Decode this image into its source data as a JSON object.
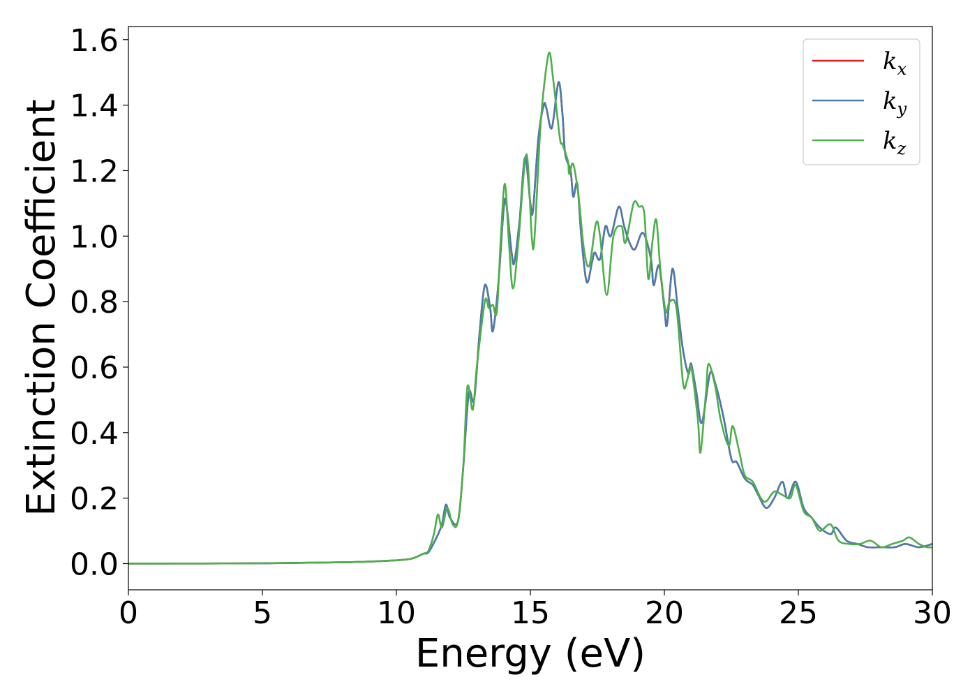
{
  "chart_data": {
    "type": "line",
    "xlabel": "Energy (eV)",
    "ylabel": "Extinction Coefficient",
    "xlim": [
      0,
      30
    ],
    "ylim": [
      -0.08,
      1.64
    ],
    "xticks": [
      0,
      5,
      10,
      15,
      20,
      25,
      30
    ],
    "xtick_labels": [
      "0",
      "5",
      "10",
      "15",
      "20",
      "25",
      "30"
    ],
    "yticks": [
      0.0,
      0.2,
      0.4,
      0.6,
      0.8,
      1.0,
      1.2,
      1.4,
      1.6
    ],
    "ytick_labels": [
      "0.0",
      "0.2",
      "0.4",
      "0.6",
      "0.8",
      "1.0",
      "1.2",
      "1.4",
      "1.6"
    ],
    "grid": false,
    "legend_position": "top-right",
    "series": [
      {
        "name": "kx",
        "legend_base": "k",
        "legend_sub": "x",
        "color": "#e41a1c",
        "points": [
          [
            0,
            0
          ],
          [
            5,
            0.001
          ],
          [
            8,
            0.004
          ],
          [
            9.5,
            0.008
          ],
          [
            10.5,
            0.014
          ],
          [
            11,
            0.03
          ],
          [
            11.2,
            0.035
          ],
          [
            11.5,
            0.08
          ],
          [
            11.7,
            0.12
          ],
          [
            11.85,
            0.18
          ],
          [
            12,
            0.14
          ],
          [
            12.3,
            0.13
          ],
          [
            12.5,
            0.3
          ],
          [
            12.7,
            0.52
          ],
          [
            12.9,
            0.5
          ],
          [
            13.1,
            0.7
          ],
          [
            13.3,
            0.85
          ],
          [
            13.5,
            0.78
          ],
          [
            13.6,
            0.71
          ],
          [
            13.8,
            0.85
          ],
          [
            14,
            1.08
          ],
          [
            14.1,
            1.1
          ],
          [
            14.3,
            0.95
          ],
          [
            14.4,
            0.92
          ],
          [
            14.6,
            1.05
          ],
          [
            14.8,
            1.24
          ],
          [
            15,
            1.1
          ],
          [
            15.1,
            1.08
          ],
          [
            15.3,
            1.3
          ],
          [
            15.5,
            1.4
          ],
          [
            15.6,
            1.39
          ],
          [
            15.8,
            1.33
          ],
          [
            16.05,
            1.47
          ],
          [
            16.2,
            1.37
          ],
          [
            16.3,
            1.25
          ],
          [
            16.5,
            1.2
          ],
          [
            16.6,
            1.12
          ],
          [
            16.75,
            1.16
          ],
          [
            16.9,
            1.0
          ],
          [
            17.1,
            0.86
          ],
          [
            17.3,
            0.92
          ],
          [
            17.4,
            0.95
          ],
          [
            17.6,
            0.93
          ],
          [
            17.8,
            1.03
          ],
          [
            18,
            1.0
          ],
          [
            18.3,
            1.09
          ],
          [
            18.5,
            1.03
          ],
          [
            18.7,
            0.98
          ],
          [
            18.9,
            0.96
          ],
          [
            19.2,
            1.01
          ],
          [
            19.5,
            0.93
          ],
          [
            19.6,
            0.85
          ],
          [
            19.8,
            0.91
          ],
          [
            20,
            0.78
          ],
          [
            20.1,
            0.73
          ],
          [
            20.3,
            0.9
          ],
          [
            20.5,
            0.78
          ],
          [
            20.7,
            0.65
          ],
          [
            20.9,
            0.58
          ],
          [
            21,
            0.61
          ],
          [
            21.2,
            0.52
          ],
          [
            21.4,
            0.43
          ],
          [
            21.7,
            0.58
          ],
          [
            21.9,
            0.55
          ],
          [
            22.2,
            0.45
          ],
          [
            22.5,
            0.32
          ],
          [
            22.7,
            0.31
          ],
          [
            23,
            0.26
          ],
          [
            23.3,
            0.24
          ],
          [
            23.5,
            0.21
          ],
          [
            23.8,
            0.17
          ],
          [
            24.1,
            0.2
          ],
          [
            24.4,
            0.25
          ],
          [
            24.6,
            0.2
          ],
          [
            24.9,
            0.25
          ],
          [
            25.2,
            0.17
          ],
          [
            25.5,
            0.14
          ],
          [
            25.8,
            0.11
          ],
          [
            26.2,
            0.09
          ],
          [
            26.4,
            0.11
          ],
          [
            26.8,
            0.07
          ],
          [
            27.2,
            0.06
          ],
          [
            27.6,
            0.05
          ],
          [
            28.1,
            0.05
          ],
          [
            28.6,
            0.05
          ],
          [
            29,
            0.06
          ],
          [
            29.5,
            0.05
          ],
          [
            30,
            0.06
          ]
        ]
      },
      {
        "name": "ky",
        "legend_base": "k",
        "legend_sub": "y",
        "color": "#4a7bb0",
        "points": [
          [
            0,
            0
          ],
          [
            5,
            0.001
          ],
          [
            8,
            0.004
          ],
          [
            9.5,
            0.008
          ],
          [
            10.5,
            0.014
          ],
          [
            11,
            0.03
          ],
          [
            11.2,
            0.035
          ],
          [
            11.5,
            0.08
          ],
          [
            11.7,
            0.12
          ],
          [
            11.85,
            0.18
          ],
          [
            12,
            0.14
          ],
          [
            12.3,
            0.13
          ],
          [
            12.5,
            0.3
          ],
          [
            12.7,
            0.52
          ],
          [
            12.9,
            0.5
          ],
          [
            13.1,
            0.7
          ],
          [
            13.3,
            0.85
          ],
          [
            13.5,
            0.78
          ],
          [
            13.6,
            0.71
          ],
          [
            13.8,
            0.85
          ],
          [
            14,
            1.08
          ],
          [
            14.1,
            1.1
          ],
          [
            14.3,
            0.95
          ],
          [
            14.4,
            0.92
          ],
          [
            14.6,
            1.05
          ],
          [
            14.8,
            1.24
          ],
          [
            15,
            1.1
          ],
          [
            15.1,
            1.08
          ],
          [
            15.3,
            1.3
          ],
          [
            15.5,
            1.4
          ],
          [
            15.6,
            1.39
          ],
          [
            15.8,
            1.33
          ],
          [
            16.05,
            1.47
          ],
          [
            16.2,
            1.37
          ],
          [
            16.3,
            1.25
          ],
          [
            16.5,
            1.2
          ],
          [
            16.6,
            1.12
          ],
          [
            16.75,
            1.16
          ],
          [
            16.9,
            1.0
          ],
          [
            17.1,
            0.86
          ],
          [
            17.3,
            0.92
          ],
          [
            17.4,
            0.95
          ],
          [
            17.6,
            0.93
          ],
          [
            17.8,
            1.03
          ],
          [
            18,
            1.0
          ],
          [
            18.3,
            1.09
          ],
          [
            18.5,
            1.03
          ],
          [
            18.7,
            0.98
          ],
          [
            18.9,
            0.96
          ],
          [
            19.2,
            1.01
          ],
          [
            19.5,
            0.93
          ],
          [
            19.6,
            0.85
          ],
          [
            19.8,
            0.91
          ],
          [
            20,
            0.78
          ],
          [
            20.1,
            0.73
          ],
          [
            20.3,
            0.9
          ],
          [
            20.5,
            0.78
          ],
          [
            20.7,
            0.65
          ],
          [
            20.9,
            0.58
          ],
          [
            21,
            0.61
          ],
          [
            21.2,
            0.52
          ],
          [
            21.4,
            0.43
          ],
          [
            21.7,
            0.58
          ],
          [
            21.9,
            0.55
          ],
          [
            22.2,
            0.45
          ],
          [
            22.5,
            0.32
          ],
          [
            22.7,
            0.31
          ],
          [
            23,
            0.26
          ],
          [
            23.3,
            0.24
          ],
          [
            23.5,
            0.21
          ],
          [
            23.8,
            0.17
          ],
          [
            24.1,
            0.2
          ],
          [
            24.4,
            0.25
          ],
          [
            24.6,
            0.2
          ],
          [
            24.9,
            0.25
          ],
          [
            25.2,
            0.17
          ],
          [
            25.5,
            0.14
          ],
          [
            25.8,
            0.11
          ],
          [
            26.2,
            0.09
          ],
          [
            26.4,
            0.11
          ],
          [
            26.8,
            0.07
          ],
          [
            27.2,
            0.06
          ],
          [
            27.6,
            0.05
          ],
          [
            28.1,
            0.05
          ],
          [
            28.6,
            0.05
          ],
          [
            29,
            0.06
          ],
          [
            29.5,
            0.05
          ],
          [
            30,
            0.06
          ]
        ]
      },
      {
        "name": "kz",
        "legend_base": "k",
        "legend_sub": "z",
        "color": "#4daf4a",
        "points": [
          [
            0,
            0
          ],
          [
            5,
            0.001
          ],
          [
            8,
            0.004
          ],
          [
            9.5,
            0.008
          ],
          [
            10.5,
            0.014
          ],
          [
            11,
            0.03
          ],
          [
            11.2,
            0.04
          ],
          [
            11.4,
            0.09
          ],
          [
            11.55,
            0.15
          ],
          [
            11.7,
            0.11
          ],
          [
            11.9,
            0.17
          ],
          [
            12.1,
            0.12
          ],
          [
            12.3,
            0.13
          ],
          [
            12.5,
            0.3
          ],
          [
            12.65,
            0.54
          ],
          [
            12.85,
            0.47
          ],
          [
            13,
            0.6
          ],
          [
            13.3,
            0.8
          ],
          [
            13.45,
            0.78
          ],
          [
            13.6,
            0.79
          ],
          [
            13.75,
            0.77
          ],
          [
            13.9,
            1.0
          ],
          [
            14.05,
            1.16
          ],
          [
            14.2,
            0.98
          ],
          [
            14.35,
            0.84
          ],
          [
            14.55,
            0.98
          ],
          [
            14.85,
            1.25
          ],
          [
            15.05,
            1.0
          ],
          [
            15.15,
            0.99
          ],
          [
            15.35,
            1.3
          ],
          [
            15.5,
            1.45
          ],
          [
            15.7,
            1.56
          ],
          [
            15.85,
            1.48
          ],
          [
            16.1,
            1.3
          ],
          [
            16.2,
            1.28
          ],
          [
            16.4,
            1.23
          ],
          [
            16.45,
            1.19
          ],
          [
            16.6,
            1.22
          ],
          [
            16.8,
            1.12
          ],
          [
            17,
            0.96
          ],
          [
            17.2,
            0.91
          ],
          [
            17.45,
            1.04
          ],
          [
            17.6,
            1.0
          ],
          [
            17.85,
            0.82
          ],
          [
            18.1,
            1.0
          ],
          [
            18.4,
            1.03
          ],
          [
            18.55,
            0.98
          ],
          [
            18.85,
            1.1
          ],
          [
            19.05,
            1.09
          ],
          [
            19.25,
            1.07
          ],
          [
            19.4,
            0.87
          ],
          [
            19.55,
            0.98
          ],
          [
            19.7,
            1.05
          ],
          [
            19.85,
            0.9
          ],
          [
            20.05,
            0.77
          ],
          [
            20.2,
            0.8
          ],
          [
            20.45,
            0.78
          ],
          [
            20.7,
            0.55
          ],
          [
            20.85,
            0.56
          ],
          [
            21,
            0.6
          ],
          [
            21.25,
            0.44
          ],
          [
            21.35,
            0.34
          ],
          [
            21.55,
            0.52
          ],
          [
            21.65,
            0.61
          ],
          [
            21.9,
            0.54
          ],
          [
            22.1,
            0.44
          ],
          [
            22.4,
            0.36
          ],
          [
            22.55,
            0.42
          ],
          [
            22.8,
            0.34
          ],
          [
            23,
            0.27
          ],
          [
            23.3,
            0.25
          ],
          [
            23.6,
            0.2
          ],
          [
            23.8,
            0.19
          ],
          [
            24.1,
            0.22
          ],
          [
            24.4,
            0.21
          ],
          [
            24.7,
            0.2
          ],
          [
            24.9,
            0.24
          ],
          [
            25.2,
            0.16
          ],
          [
            25.5,
            0.14
          ],
          [
            25.8,
            0.1
          ],
          [
            26.2,
            0.12
          ],
          [
            26.5,
            0.07
          ],
          [
            26.9,
            0.06
          ],
          [
            27.3,
            0.06
          ],
          [
            27.7,
            0.07
          ],
          [
            28.1,
            0.05
          ],
          [
            28.5,
            0.06
          ],
          [
            28.9,
            0.07
          ],
          [
            29.15,
            0.08
          ],
          [
            29.5,
            0.06
          ],
          [
            29.8,
            0.05
          ],
          [
            30,
            0.05
          ]
        ]
      }
    ]
  }
}
